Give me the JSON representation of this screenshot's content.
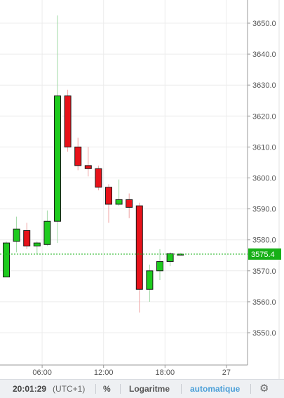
{
  "chart_data": {
    "type": "candlestick",
    "ylim": [
      3540,
      3660
    ],
    "y_ticks": [
      3550,
      3560,
      3570,
      3580,
      3590,
      3600,
      3610,
      3620,
      3630,
      3640,
      3650
    ],
    "y_tick_labels": [
      "3550.0",
      "3560.0",
      "3570.0",
      "3580.0",
      "3590.0",
      "3600.0",
      "3610.0",
      "3620.0",
      "3630.0",
      "3640.0",
      "3650.0"
    ],
    "x_ticks": [
      {
        "hour": 6,
        "label": "06:00"
      },
      {
        "hour": 12,
        "label": "12:00"
      },
      {
        "hour": 18,
        "label": "18:00"
      },
      {
        "hour": 24,
        "label": "27"
      }
    ],
    "xlim": [
      2.3,
      25.5
    ],
    "current_price": 3575.4,
    "current_price_label": "3575.4",
    "colors": {
      "up": "#1ecb1e",
      "down": "#e8121a",
      "price_line": "#17b017",
      "grid": "#ececec"
    },
    "candles": [
      {
        "t": 2.5,
        "o": 3568.0,
        "h": 3579.5,
        "l": 3568.0,
        "c": 3579.0
      },
      {
        "t": 3.5,
        "o": 3579.5,
        "h": 3587.5,
        "l": 3576.0,
        "c": 3583.5
      },
      {
        "t": 4.5,
        "o": 3583.0,
        "h": 3585.5,
        "l": 3577.0,
        "c": 3578.0
      },
      {
        "t": 5.5,
        "o": 3578.0,
        "h": 3579.5,
        "l": 3575.5,
        "c": 3579.0
      },
      {
        "t": 6.5,
        "o": 3578.5,
        "h": 3589.5,
        "l": 3578.0,
        "c": 3586.0
      },
      {
        "t": 7.5,
        "o": 3586.0,
        "h": 3652.5,
        "l": 3579.0,
        "c": 3626.5
      },
      {
        "t": 8.5,
        "o": 3626.5,
        "h": 3628.5,
        "l": 3608.5,
        "c": 3610.0
      },
      {
        "t": 9.5,
        "o": 3610.0,
        "h": 3613.0,
        "l": 3602.5,
        "c": 3604.0
      },
      {
        "t": 10.5,
        "o": 3604.0,
        "h": 3610.0,
        "l": 3600.5,
        "c": 3603.0
      },
      {
        "t": 11.5,
        "o": 3603.0,
        "h": 3604.0,
        "l": 3596.0,
        "c": 3597.0
      },
      {
        "t": 12.5,
        "o": 3597.0,
        "h": 3598.0,
        "l": 3585.5,
        "c": 3591.5
      },
      {
        "t": 13.5,
        "o": 3591.5,
        "h": 3599.5,
        "l": 3591.0,
        "c": 3593.0
      },
      {
        "t": 14.5,
        "o": 3593.0,
        "h": 3595.0,
        "l": 3587.0,
        "c": 3590.5
      },
      {
        "t": 15.5,
        "o": 3591.0,
        "h": 3592.0,
        "l": 3556.5,
        "c": 3564.0
      },
      {
        "t": 16.5,
        "o": 3564.0,
        "h": 3572.0,
        "l": 3560.0,
        "c": 3570.0
      },
      {
        "t": 17.5,
        "o": 3570.0,
        "h": 3577.0,
        "l": 3567.0,
        "c": 3573.0
      },
      {
        "t": 18.5,
        "o": 3573.0,
        "h": 3576.0,
        "l": 3571.5,
        "c": 3575.5
      },
      {
        "t": 19.5,
        "o": 3575.2,
        "h": 3575.8,
        "l": 3575.0,
        "c": 3575.4
      }
    ]
  },
  "footer": {
    "time": "20:01:29",
    "timezone": "(UTC+1)",
    "percent": "%",
    "log": "Logaritme",
    "auto": "automatique",
    "settings_icon": "gear-icon"
  }
}
